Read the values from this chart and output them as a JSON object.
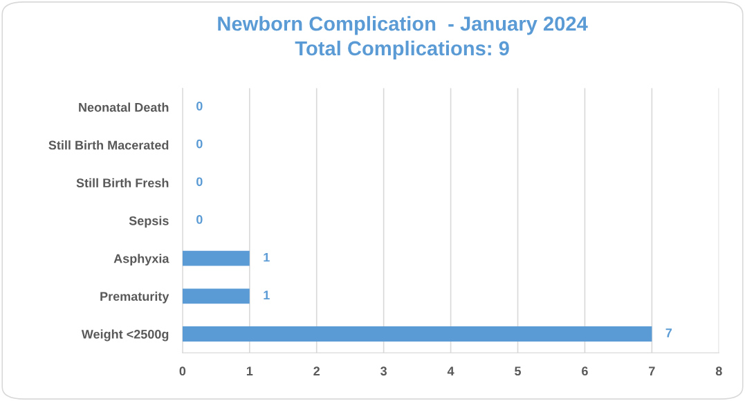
{
  "chart_data": {
    "type": "bar",
    "orientation": "horizontal",
    "title": "Newborn Complication  - January 2024\nTotal Complications: 9",
    "categories": [
      "Neonatal Death",
      "Still Birth Macerated",
      "Still Birth Fresh",
      "Sepsis",
      "Asphyxia",
      "Prematurity",
      "Weight <2500g"
    ],
    "values": [
      0,
      0,
      0,
      0,
      1,
      1,
      7
    ],
    "color": "#5b9bd5",
    "xlim": [
      0,
      8
    ],
    "xticks": [
      0,
      1,
      2,
      3,
      4,
      5,
      6,
      7,
      8
    ],
    "grid": "x",
    "data_labels": true,
    "legend": false
  }
}
